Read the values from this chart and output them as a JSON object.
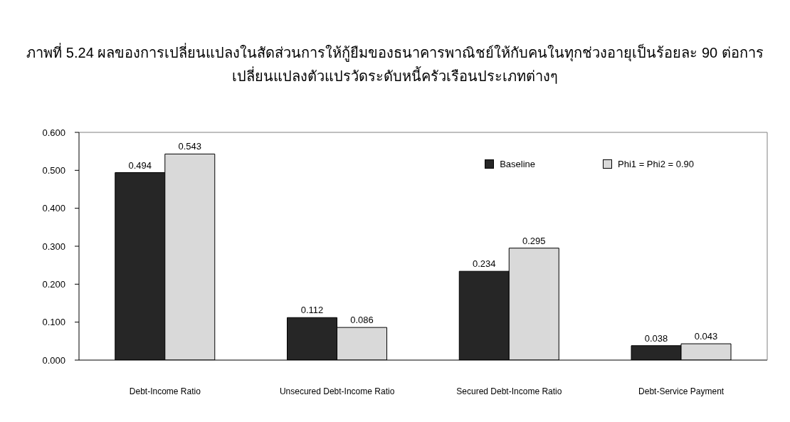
{
  "chart_data": {
    "type": "bar",
    "title": "ภาพที่ 5.24 ผลของการเปลี่ยนแปลงในสัดส่วนการให้กู้ยืมของธนาคารพาณิชย์ให้กับคนในทุกช่วงอายุเป็นร้อยละ 90 ต่อการเปลี่ยนแปลงตัวแปรวัดระดับหนี้ครัวเรือนประเภทต่างๆ",
    "categories": [
      "Debt-Income Ratio",
      "Unsecured Debt-Income Ratio",
      "Secured Debt-Income Ratio",
      "Debt-Service Payment"
    ],
    "series": [
      {
        "name": "Baseline",
        "color": "#262626",
        "values": [
          0.494,
          0.112,
          0.234,
          0.038
        ]
      },
      {
        "name": "Phi1 = Phi2 = 0.90",
        "color": "#d9d9d9",
        "values": [
          0.543,
          0.086,
          0.295,
          0.043
        ]
      }
    ],
    "ylim": [
      0,
      0.6
    ],
    "yticks": [
      {
        "value": 0,
        "label": "0.000"
      },
      {
        "value": 0.1,
        "label": "0.100"
      },
      {
        "value": 0.2,
        "label": "0.200"
      },
      {
        "value": 0.3,
        "label": "0.300"
      },
      {
        "value": 0.4,
        "label": "0.400"
      },
      {
        "value": 0.5,
        "label": "0.500"
      },
      {
        "value": 0.6,
        "label": "0.600"
      }
    ],
    "legend": "top right",
    "data_labels": true
  }
}
